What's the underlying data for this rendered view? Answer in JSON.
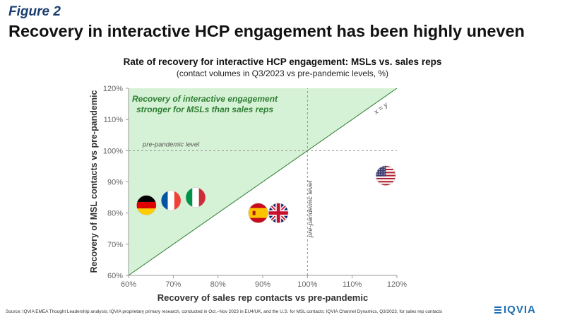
{
  "header": {
    "figure_label": "Figure 2",
    "headline": "Recovery in interactive HCP engagement has been highly uneven"
  },
  "chart_data": {
    "type": "scatter",
    "title": "Rate of recovery for interactive HCP engagement: MSLs vs. sales reps",
    "subtitle": "(contact volumes in Q3/2023 vs pre-pandemic levels, %)",
    "xlabel": "Recovery of sales rep contacts vs pre-pandemic",
    "ylabel": "Recovery of MSL contacts vs pre-pandemic",
    "xlim": [
      60,
      120
    ],
    "ylim": [
      60,
      120
    ],
    "x_ticks": [
      "60%",
      "70%",
      "80%",
      "90%",
      "100%",
      "110%",
      "120%"
    ],
    "y_ticks": [
      "60%",
      "70%",
      "80%",
      "90%",
      "100%",
      "110%",
      "120%"
    ],
    "reference_lines": {
      "horizontal": {
        "value": 100,
        "label": "pre-pandemic level"
      },
      "vertical": {
        "value": 100,
        "label": "pre-pandemic level"
      },
      "diagonal": {
        "label": "x = y"
      }
    },
    "region_annotation": "Recovery of interactive engagement stronger for MSLs than sales reps",
    "region_annotation_lines": [
      "Recovery of interactive engagement",
      "stronger for MSLs than sales reps"
    ],
    "points": [
      {
        "country": "germany",
        "x": 64,
        "y": 82.5
      },
      {
        "country": "france",
        "x": 69.5,
        "y": 84
      },
      {
        "country": "italy",
        "x": 75,
        "y": 85
      },
      {
        "country": "spain",
        "x": 89,
        "y": 80
      },
      {
        "country": "uk",
        "x": 93.5,
        "y": 80
      },
      {
        "country": "usa",
        "x": 117.5,
        "y": 92
      }
    ],
    "colors": {
      "region_fill": "#d6f2d6",
      "annotation_text": "#2e7d32",
      "axis": "#9a9a9a"
    }
  },
  "footer": {
    "source": "Source: IQVIA EMEA Thought Leadership analysis; IQVIA proprietary primary research, conducted in Oct.–Nov 2023 in EU4/UK, and the U.S. for MSL contacts; IQVIA Channel Dynamics, Q3/2023, for sales rep contacts",
    "logo": "IQVIA"
  }
}
